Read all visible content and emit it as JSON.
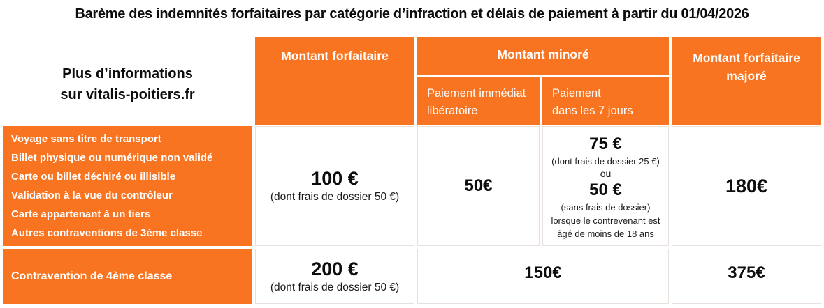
{
  "page": {
    "title": "Barème des indemnités forfaitaires par catégorie d’infraction et délais de paiement à partir du 01/04/2026"
  },
  "colors": {
    "accent_orange": "#F97420",
    "cell_border": "#E7E0DD",
    "header_text": "#FFFFFF",
    "body_text": "#0D0D0D"
  },
  "info_box": {
    "line1": "Plus d’informations",
    "line2": "sur vitalis-poitiers.fr"
  },
  "header": {
    "montant_forfaitaire": "Montant forfaitaire",
    "montant_minore": "Montant minoré",
    "sub_immediat_line1": "Paiement immédiat",
    "sub_immediat_line2": "libératoire",
    "sub_7jours_line1": "Paiement",
    "sub_7jours_line2": "dans les 7 jours",
    "montant_majore_line1": "Montant forfaitaire",
    "montant_majore_line2": "majoré"
  },
  "row_3eme": {
    "infractions": [
      "Voyage sans titre de transport",
      "Billet physique ou numérique non validé",
      "Carte ou billet déchiré ou illisible",
      "Validation à la vue du contrôleur",
      "Carte appartenant à un tiers",
      "Autres contraventions de 3ème classe"
    ],
    "forfaitaire_amount": "100 €",
    "forfaitaire_note": "(dont frais de dossier 50 €)",
    "immediat_amount": "50€",
    "jours7_amount1": "75 €",
    "jours7_note1": "(dont frais de dossier 25 €)",
    "jours7_or": "ou",
    "jours7_amount2": "50 €",
    "jours7_note2": "(sans frais de dossier)",
    "jours7_cond_line1": "lorsque le contrevenant est",
    "jours7_cond_line2": "âgé de moins de 18 ans",
    "majore_amount": "180€"
  },
  "row_4eme": {
    "label": "Contravention de 4ème classe",
    "forfaitaire_amount": "200 €",
    "forfaitaire_note": "(dont frais de dossier 50 €)",
    "minore_amount": "150€",
    "majore_amount": "375€"
  }
}
